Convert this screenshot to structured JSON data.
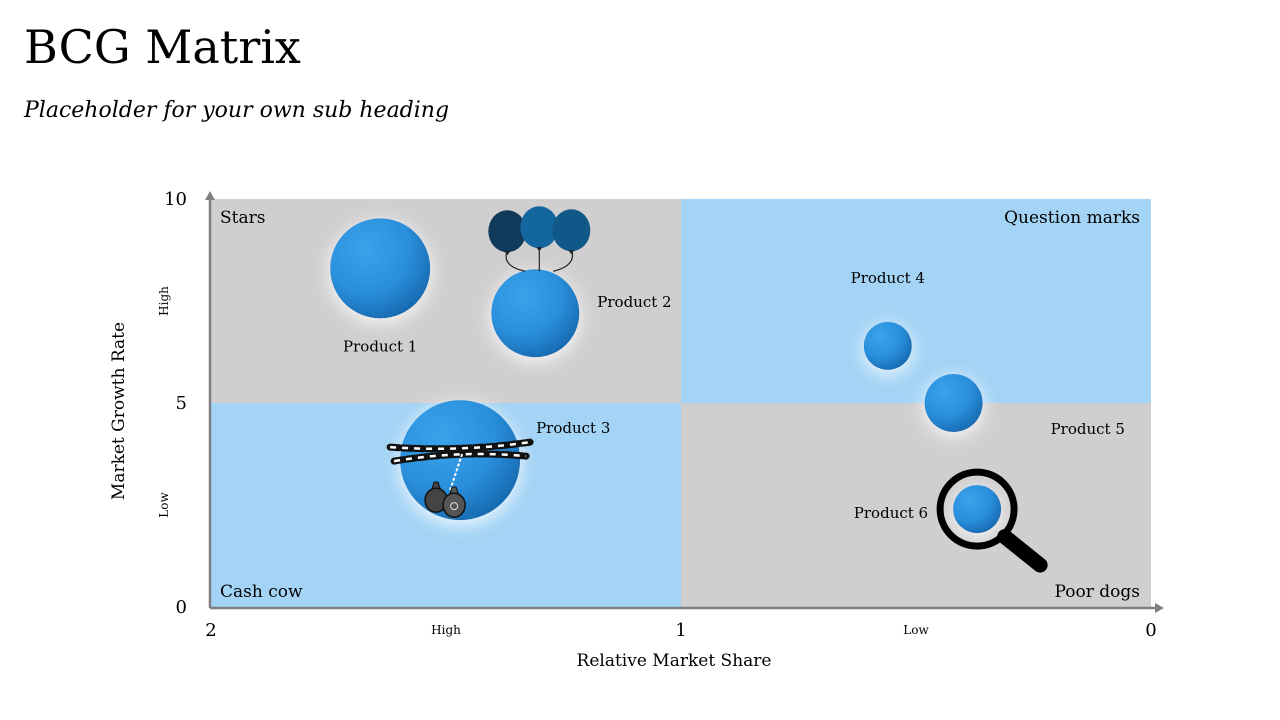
{
  "slide": {
    "title": "BCG Matrix",
    "subtitle": "Placeholder for your own sub heading"
  },
  "chart_data": {
    "type": "scatter",
    "title": "",
    "xlabel": "Relative Market Share",
    "ylabel": "Market Growth Rate",
    "xlim": [
      2,
      0
    ],
    "ylim": [
      0,
      10
    ],
    "x_ticks": [
      {
        "value": 2,
        "label": "2"
      },
      {
        "value": 1,
        "label": "1"
      },
      {
        "value": 0,
        "label": "0"
      }
    ],
    "y_ticks": [
      {
        "value": 0,
        "label": "0"
      },
      {
        "value": 5,
        "label": "5"
      },
      {
        "value": 10,
        "label": "10"
      }
    ],
    "x_zone_labels": [
      {
        "value": 1.5,
        "label": "High"
      },
      {
        "value": 0.5,
        "label": "Low"
      }
    ],
    "y_zone_labels": [
      {
        "value": 7.5,
        "label": "High"
      },
      {
        "value": 2.5,
        "label": "Low"
      }
    ],
    "quadrants": [
      {
        "name": "Stars",
        "x_range": [
          2,
          1
        ],
        "y_range": [
          5,
          10
        ],
        "color": "#d0cece"
      },
      {
        "name": "Question marks",
        "x_range": [
          1,
          0
        ],
        "y_range": [
          5,
          10
        ],
        "color": "#a3d3f5"
      },
      {
        "name": "Cash cow",
        "x_range": [
          2,
          1
        ],
        "y_range": [
          0,
          5
        ],
        "color": "#a3d3f5"
      },
      {
        "name": "Poor dogs",
        "x_range": [
          1,
          0
        ],
        "y_range": [
          0,
          5
        ],
        "color": "#d0cece"
      }
    ],
    "points": [
      {
        "label": "Product 1",
        "x": 1.64,
        "y": 8.3,
        "size": 50,
        "label_pos": "below"
      },
      {
        "label": "Product 2",
        "x": 1.31,
        "y": 7.2,
        "size": 44,
        "label_pos": "right",
        "icon": "balloons-icon"
      },
      {
        "label": "Product 3",
        "x": 1.47,
        "y": 3.6,
        "size": 60,
        "label_pos": "upper-right",
        "icon": "chained-money-bags-icon"
      },
      {
        "label": "Product 4",
        "x": 0.56,
        "y": 6.4,
        "size": 24,
        "label_pos": "above"
      },
      {
        "label": "Product 5",
        "x": 0.42,
        "y": 5.0,
        "size": 29,
        "label_pos": "lower-right"
      },
      {
        "label": "Product 6",
        "x": 0.37,
        "y": 2.4,
        "size": 24,
        "label_pos": "left",
        "icon": "magnifier-icon"
      }
    ],
    "colors": {
      "bubble_light": "#3aa3ea",
      "bubble_dark": "#1464a8",
      "balloon_1": "#0f3a5a",
      "balloon_2": "#14679e",
      "balloon_3": "#0f5888",
      "axis": "#7f7f7f"
    }
  }
}
